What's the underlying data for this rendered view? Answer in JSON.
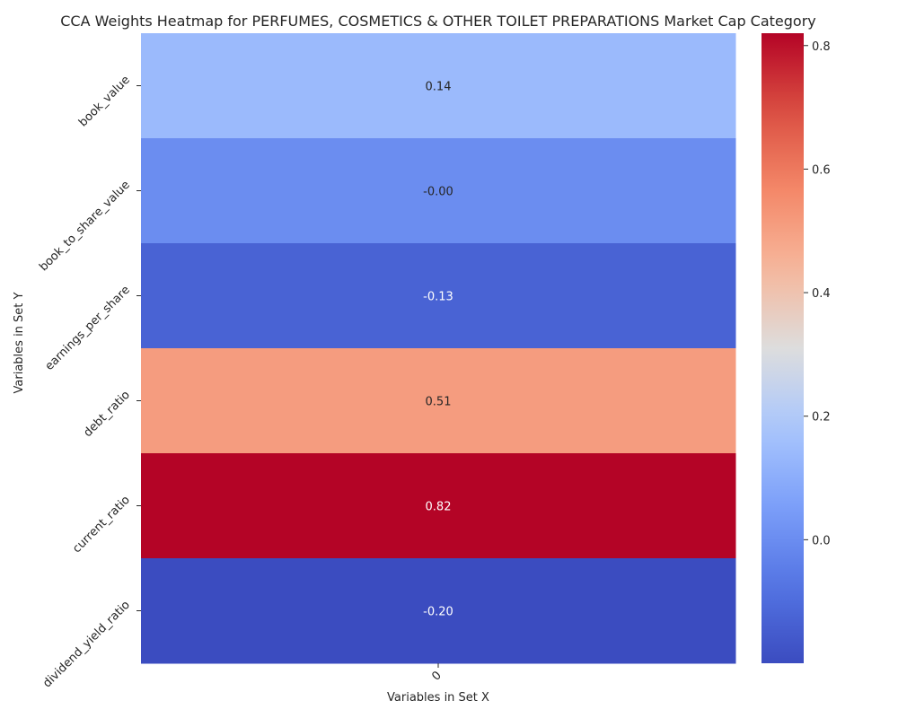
{
  "chart_data": {
    "type": "heatmap",
    "title": "CCA Weights Heatmap for PERFUMES, COSMETICS & OTHER TOILET PREPARATIONS Market Cap Category",
    "xlabel": "Variables in Set X",
    "ylabel": "Variables in Set Y",
    "x_categories": [
      "0"
    ],
    "y_categories": [
      "book_value",
      "book_to_share_value",
      "earnings_per_share",
      "debt_ratio",
      "current_ratio",
      "dividend_yield_ratio"
    ],
    "values": [
      [
        0.14
      ],
      [
        -0.0
      ],
      [
        -0.13
      ],
      [
        0.51
      ],
      [
        0.82
      ],
      [
        -0.2
      ]
    ],
    "annotations": [
      "0.14",
      "-0.00",
      "-0.13",
      "0.51",
      "0.82",
      "-0.20"
    ],
    "colormap": "coolwarm",
    "vmin": -0.2,
    "vmax": 0.82,
    "colorbar_ticks": [
      0.8,
      0.6,
      0.4,
      0.2,
      0.0
    ],
    "colorbar_tick_labels": [
      "0.8",
      "0.6",
      "0.4",
      "0.2",
      "0.0"
    ],
    "grid": false,
    "legend": "colorbar-right"
  }
}
